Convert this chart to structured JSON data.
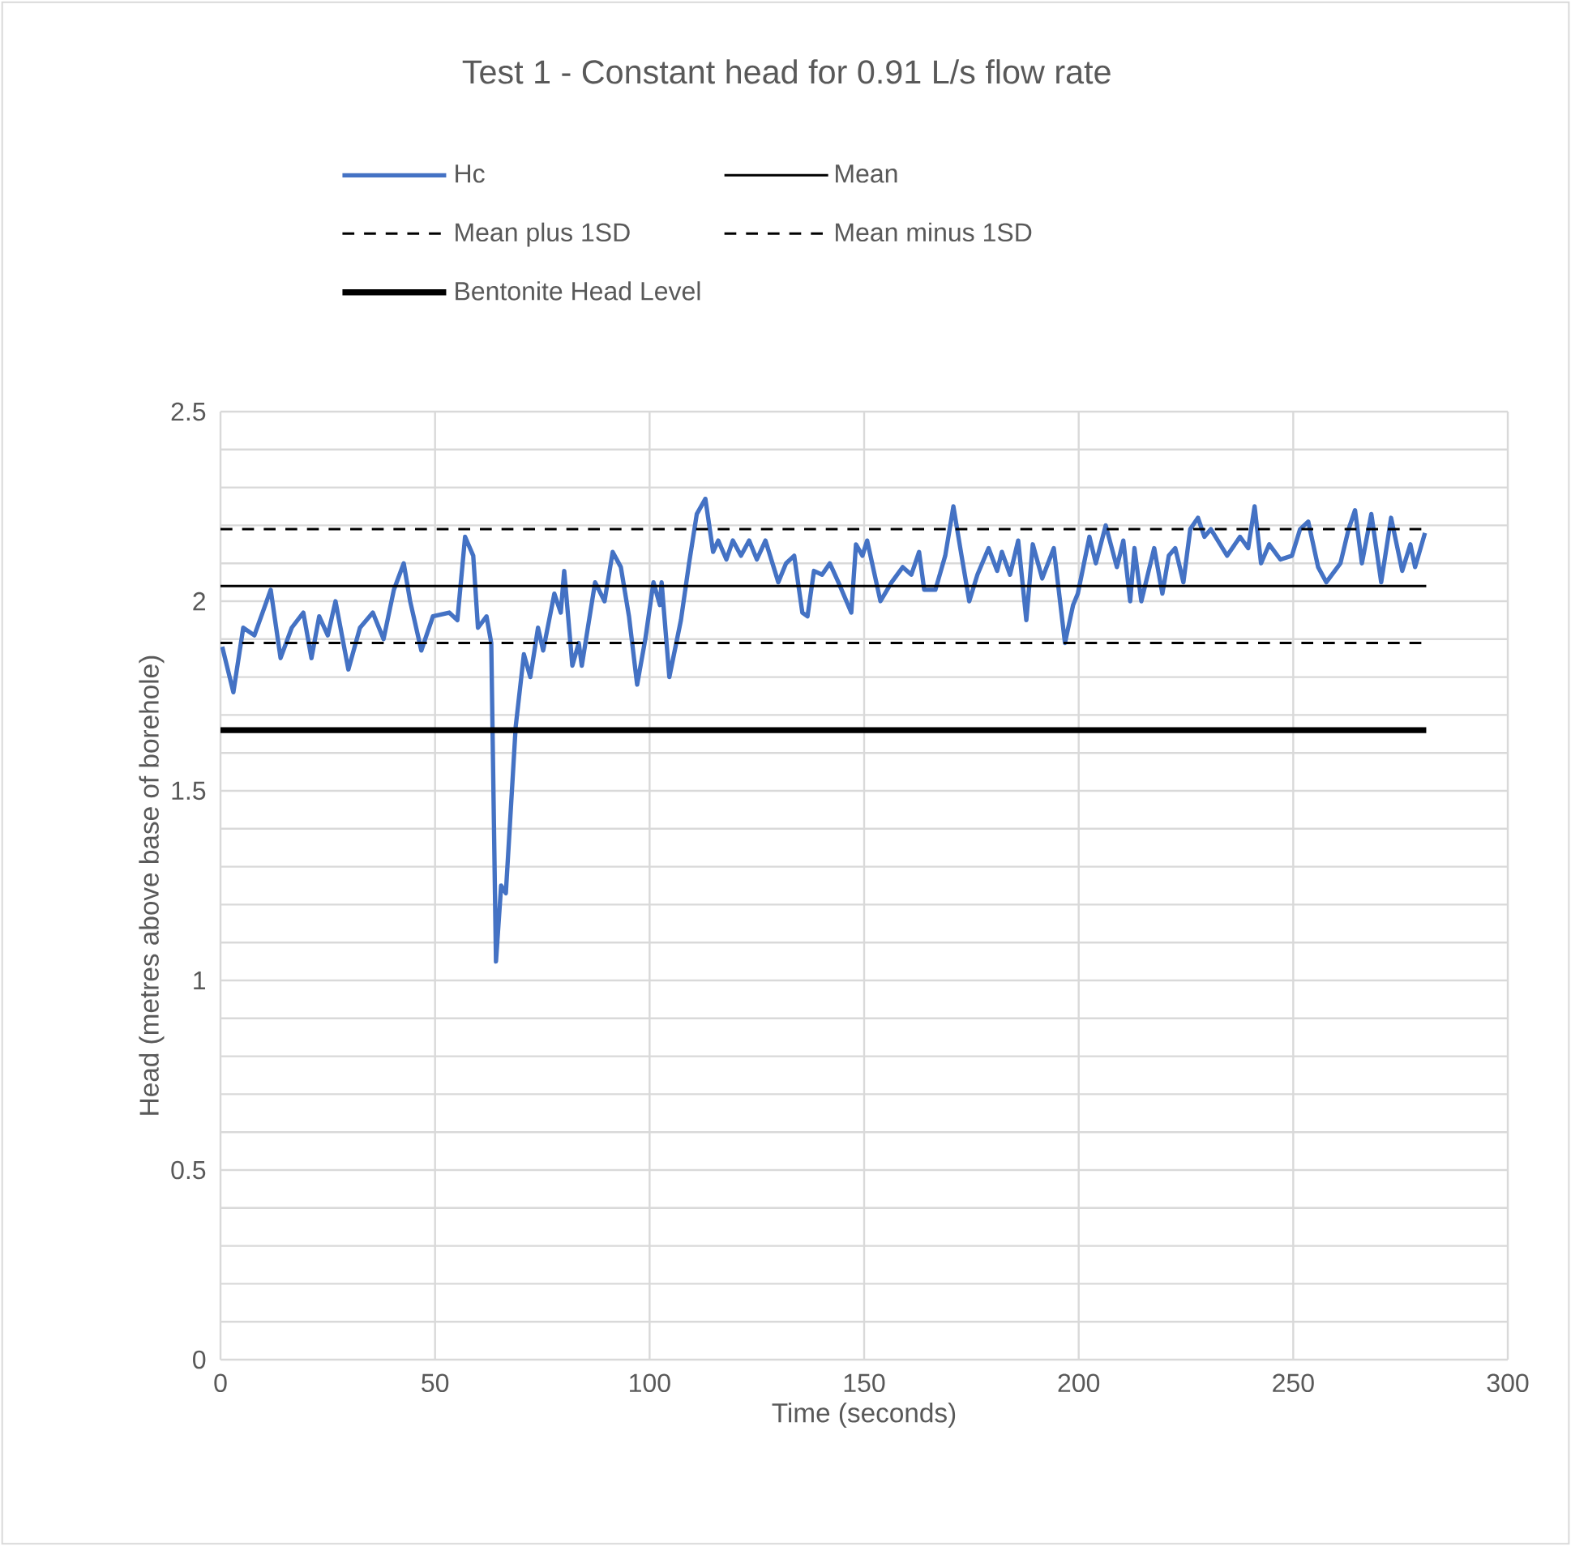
{
  "chart_data": {
    "type": "line",
    "title": "Test 1 - Constant head for 0.91 L/s flow rate",
    "xlabel": "Time (seconds)",
    "ylabel": "Head (metres above base of borehole)",
    "series": [
      {
        "name": "Hc",
        "color": "#4472c4",
        "line_style": "solid",
        "x": [
          0.4,
          3,
          5.3,
          7.9,
          9.8,
          11.7,
          14,
          16.6,
          19.3,
          21.2,
          23,
          25,
          26.8,
          29.8,
          32.5,
          35.5,
          38,
          40.4,
          42.7,
          44.2,
          46.8,
          49.5,
          53.3,
          55.2,
          57,
          58.9,
          60,
          62,
          63.1,
          64.2,
          65.4,
          66.5,
          68.8,
          70.7,
          72.2,
          74,
          75.2,
          77.8,
          79.3,
          80.1,
          82,
          83.5,
          84.2,
          87.3,
          89.5,
          91.4,
          93.3,
          95.2,
          97.1,
          99,
          100.9,
          102.4,
          102.8,
          104.6,
          107.3,
          109.2,
          111,
          113,
          114.8,
          116,
          117.9,
          119.4,
          121.3,
          123.2,
          125,
          127,
          130,
          131.8,
          133.7,
          135.6,
          136.8,
          138.3,
          140.2,
          142,
          144,
          147,
          148.1,
          149.6,
          150.7,
          153.8,
          156.4,
          159,
          161,
          162.8,
          164,
          166.6,
          168.9,
          170.8,
          172.7,
          174.5,
          176.4,
          179,
          181,
          182.1,
          184,
          185.9,
          187.8,
          189.3,
          191.5,
          194.2,
          196.8,
          198.7,
          199.8,
          202.5,
          204,
          206.3,
          208.9,
          210.4,
          212,
          213,
          214.6,
          217.6,
          219.5,
          221,
          222.5,
          224.4,
          226,
          227.8,
          229.3,
          230.8,
          234.6,
          237.6,
          239.5,
          241,
          242.5,
          244.4,
          247,
          249.7,
          251.6,
          253.5,
          255.8,
          257.7,
          261,
          262.9,
          264.4,
          266,
          268.2,
          270.5,
          272.8,
          275.4,
          277.3,
          278.4,
          280.7
        ],
        "values": [
          1.88,
          1.76,
          1.93,
          1.91,
          1.97,
          2.03,
          1.85,
          1.93,
          1.97,
          1.85,
          1.96,
          1.91,
          2.0,
          1.82,
          1.93,
          1.97,
          1.9,
          2.03,
          2.1,
          2.0,
          1.87,
          1.96,
          1.97,
          1.95,
          2.17,
          2.12,
          1.93,
          1.96,
          1.89,
          1.05,
          1.25,
          1.23,
          1.67,
          1.86,
          1.8,
          1.93,
          1.87,
          2.02,
          1.97,
          2.08,
          1.83,
          1.89,
          1.83,
          2.05,
          2.0,
          2.13,
          2.09,
          1.96,
          1.78,
          1.9,
          2.05,
          1.99,
          2.05,
          1.8,
          1.95,
          2.1,
          2.23,
          2.27,
          2.13,
          2.16,
          2.11,
          2.16,
          2.12,
          2.16,
          2.11,
          2.16,
          2.05,
          2.1,
          2.12,
          1.97,
          1.96,
          2.08,
          2.07,
          2.1,
          2.05,
          1.97,
          2.15,
          2.12,
          2.16,
          2.0,
          2.05,
          2.09,
          2.07,
          2.13,
          2.03,
          2.03,
          2.12,
          2.25,
          2.12,
          2.0,
          2.07,
          2.14,
          2.08,
          2.13,
          2.07,
          2.16,
          1.95,
          2.15,
          2.06,
          2.14,
          1.89,
          1.99,
          2.02,
          2.17,
          2.1,
          2.2,
          2.09,
          2.16,
          2.0,
          2.14,
          2.0,
          2.14,
          2.02,
          2.12,
          2.14,
          2.05,
          2.19,
          2.22,
          2.17,
          2.19,
          2.12,
          2.17,
          2.14,
          2.25,
          2.1,
          2.15,
          2.11,
          2.12,
          2.19,
          2.21,
          2.09,
          2.05,
          2.1,
          2.19,
          2.24,
          2.1,
          2.23,
          2.05,
          2.22,
          2.08,
          2.15,
          2.09,
          2.18
        ]
      },
      {
        "name": "Mean",
        "color": "#000000",
        "line_style": "solid",
        "x": [
          0,
          281
        ],
        "values": [
          2.04,
          2.04
        ]
      },
      {
        "name": "Mean plus 1SD",
        "color": "#000000",
        "line_style": "dashed",
        "x": [
          0,
          281
        ],
        "values": [
          2.19,
          2.19
        ]
      },
      {
        "name": "Mean minus 1SD",
        "color": "#000000",
        "line_style": "dashed",
        "x": [
          0,
          281
        ],
        "values": [
          1.89,
          1.89
        ]
      },
      {
        "name": "Bentonite Head Level",
        "color": "#000000",
        "line_style": "solid",
        "x": [
          0,
          281
        ],
        "values": [
          1.66,
          1.66
        ]
      }
    ],
    "xlim": [
      0,
      300
    ],
    "xticks": [
      0,
      50,
      100,
      150,
      200,
      250,
      300
    ],
    "ylim": [
      0,
      2.5
    ],
    "yticks": [
      0,
      {
        "value": 0.1,
        "label": null
      },
      {
        "value": 0.2,
        "label": null
      },
      {
        "value": 0.3,
        "label": null
      },
      {
        "value": 0.4,
        "label": null
      },
      0.5,
      {
        "value": 0.6,
        "label": null
      },
      {
        "value": 0.7,
        "label": null
      },
      {
        "value": 0.8,
        "label": null
      },
      {
        "value": 0.9,
        "label": null
      },
      1,
      {
        "value": 1.1,
        "label": null
      },
      {
        "value": 1.2,
        "label": null
      },
      {
        "value": 1.3,
        "label": null
      },
      {
        "value": 1.4,
        "label": null
      },
      1.5,
      {
        "value": 1.6,
        "label": null
      },
      {
        "value": 1.7,
        "label": null
      },
      {
        "value": 1.8,
        "label": null
      },
      {
        "value": 1.9,
        "label": null
      },
      2,
      {
        "value": 2.1,
        "label": null
      },
      {
        "value": 2.2,
        "label": null
      },
      {
        "value": 2.3,
        "label": null
      },
      {
        "value": 2.4,
        "label": null
      },
      2.5
    ],
    "grid": true,
    "legend": "top",
    "marker": "none"
  }
}
